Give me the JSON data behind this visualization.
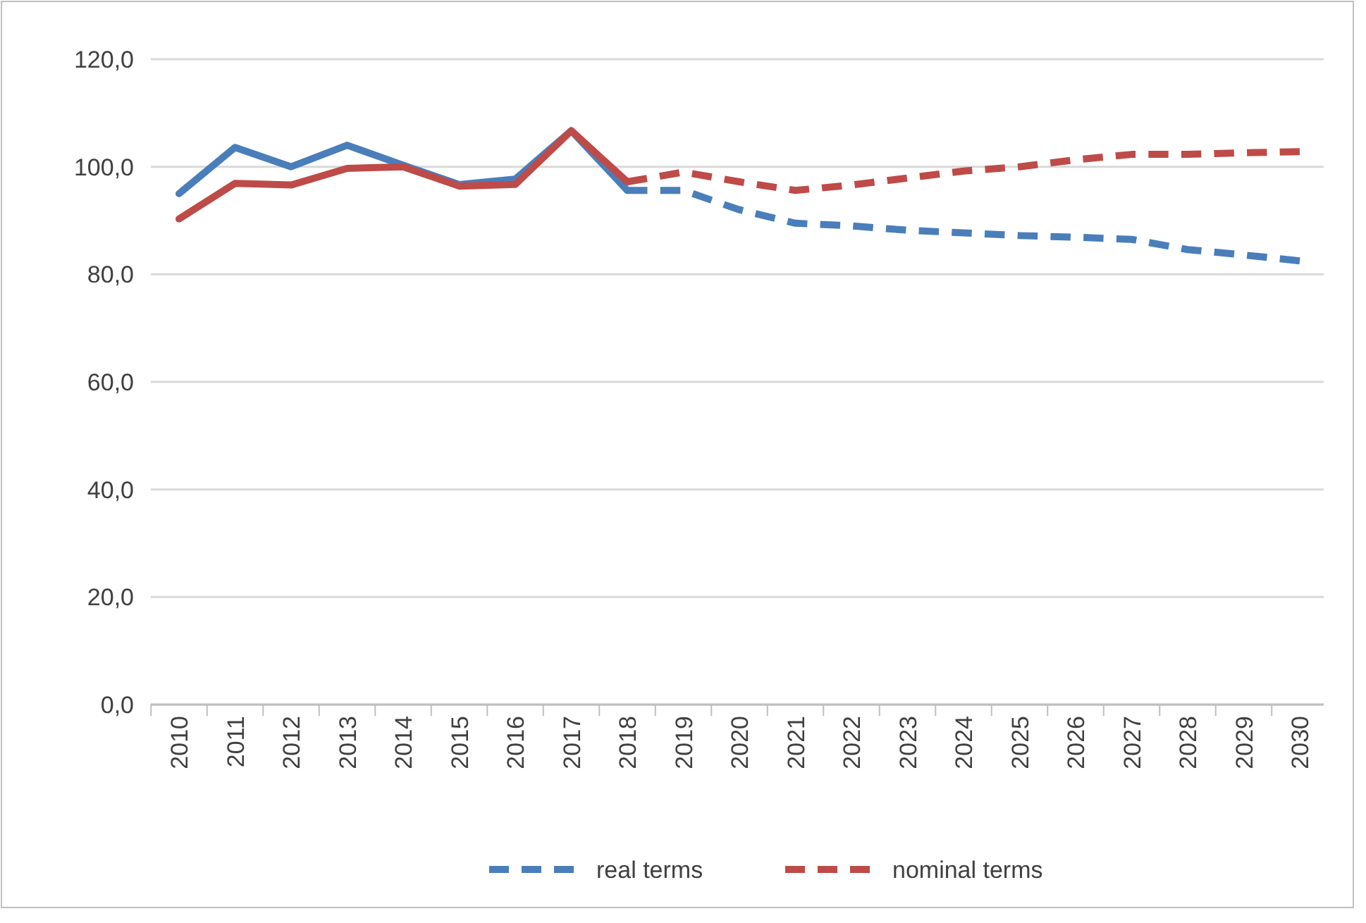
{
  "chart_data": {
    "type": "line",
    "categories": [
      "2010",
      "2011",
      "2012",
      "2013",
      "2014",
      "2015",
      "2016",
      "2017",
      "2018",
      "2019",
      "2020",
      "2021",
      "2022",
      "2023",
      "2024",
      "2025",
      "2026",
      "2027",
      "2028",
      "2029",
      "2030"
    ],
    "series": [
      {
        "color": "#4a7ebb",
        "line_style": "solid",
        "values": [
          95,
          103.6,
          100,
          104,
          100.3,
          96.7,
          97.7,
          106.7,
          95.6,
          null,
          null,
          null,
          null,
          null,
          null,
          null,
          null,
          null,
          null,
          null,
          null
        ]
      },
      {
        "color": "#be4b48",
        "line_style": "solid",
        "values": [
          90.3,
          96.9,
          96.6,
          99.7,
          100,
          96.4,
          96.7,
          106.7,
          97.2,
          null,
          null,
          null,
          null,
          null,
          null,
          null,
          null,
          null,
          null,
          null,
          null
        ]
      },
      {
        "name": "real terms",
        "color": "#4a7ebb",
        "line_style": "dashed",
        "values": [
          null,
          null,
          null,
          null,
          null,
          null,
          null,
          null,
          95.6,
          95.6,
          92,
          89.5,
          89,
          88.2,
          87.7,
          87.2,
          86.9,
          86.5,
          84.6,
          83.6,
          82.5
        ]
      },
      {
        "name": "nominal terms",
        "color": "#be4b48",
        "line_style": "dashed",
        "values": [
          null,
          null,
          null,
          null,
          null,
          null,
          null,
          null,
          97.2,
          99,
          97.2,
          95.6,
          96.6,
          97.9,
          99.2,
          100,
          101.3,
          102.3,
          102.3,
          102.6,
          102.8
        ]
      }
    ],
    "ylim": [
      0,
      120
    ],
    "yticks": [
      {
        "value": 0,
        "label": "0,0"
      },
      {
        "value": 20,
        "label": "20,0"
      },
      {
        "value": 40,
        "label": "40,0"
      },
      {
        "value": 60,
        "label": "60,0"
      },
      {
        "value": 80,
        "label": "80,0"
      },
      {
        "value": 100,
        "label": "100,0"
      },
      {
        "value": 120,
        "label": "120,0"
      }
    ],
    "grid": "y",
    "legend": "bottom",
    "marker": "none"
  }
}
